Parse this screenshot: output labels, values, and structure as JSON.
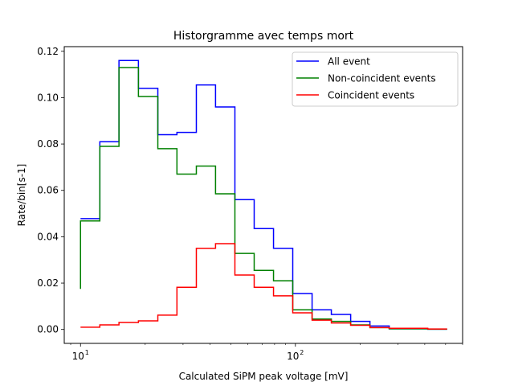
{
  "chart_data": {
    "type": "line",
    "step": "post",
    "title": "Historgramme avec temps mort",
    "xlabel": "Calculated SiPM peak voltage [mV]",
    "ylabel": "Rate/bin[s-1]",
    "xscale": "log",
    "xlim": [
      8.4,
      600
    ],
    "ylim": [
      -0.006,
      0.122
    ],
    "grid": false,
    "legend_position": "top-right",
    "xticks": [
      {
        "value": 10,
        "label": "10",
        "sup": "1"
      },
      {
        "value": 100,
        "label": "10",
        "sup": "2"
      }
    ],
    "yticks": [
      0.0,
      0.02,
      0.04,
      0.06,
      0.08,
      0.1,
      0.12
    ],
    "ytick_labels": [
      "0.00",
      "0.02",
      "0.04",
      "0.06",
      "0.08",
      "0.10",
      "0.12"
    ],
    "bin_edges": [
      10,
      12.3,
      15.1,
      18.6,
      22.9,
      28.1,
      34.6,
      42.5,
      52.3,
      64.3,
      79.1,
      97.2,
      119.6,
      147.0,
      180.8,
      222.3,
      273.3,
      336.1,
      413.3,
      508.2
    ],
    "series": [
      {
        "name": "All event",
        "color": "#0000ff",
        "values": [
          0.0478,
          0.081,
          0.116,
          0.104,
          0.084,
          0.085,
          0.1055,
          0.096,
          0.056,
          0.0435,
          0.035,
          0.0155,
          0.0085,
          0.0065,
          0.0035,
          0.0015,
          0.0003,
          0.0003,
          0.0001
        ]
      },
      {
        "name": "Non-coincident events",
        "color": "#008000",
        "values": [
          0.0468,
          0.079,
          0.113,
          0.1005,
          0.078,
          0.067,
          0.0705,
          0.0585,
          0.0328,
          0.0255,
          0.021,
          0.0085,
          0.0045,
          0.0035,
          0.002,
          0.0008,
          0.0003,
          0.0003,
          0.0001
        ],
        "start_value": 0.0175
      },
      {
        "name": "Coincident events",
        "color": "#ff0000",
        "values": [
          0.001,
          0.002,
          0.003,
          0.0037,
          0.0062,
          0.0182,
          0.035,
          0.037,
          0.0235,
          0.0182,
          0.0145,
          0.0072,
          0.004,
          0.0028,
          0.0018,
          0.0008,
          0.0005,
          0.0005,
          0.0002
        ]
      }
    ]
  }
}
